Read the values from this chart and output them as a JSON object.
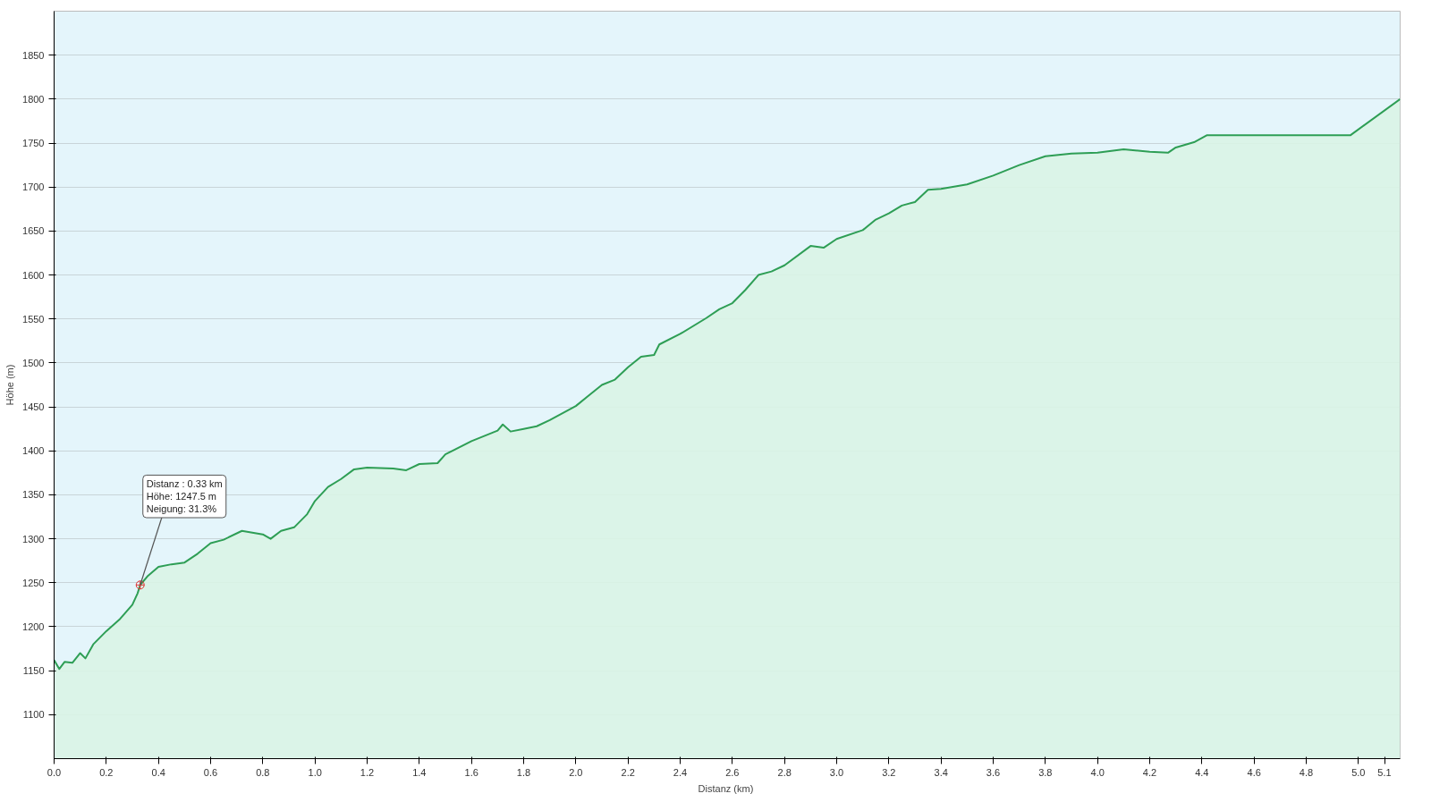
{
  "chart_data": {
    "type": "area",
    "xlabel": "Distanz  (km)",
    "ylabel": "Höhe (m)",
    "x": [
      0.0,
      0.02,
      0.04,
      0.07,
      0.1,
      0.12,
      0.15,
      0.2,
      0.25,
      0.3,
      0.32,
      0.33,
      0.36,
      0.4,
      0.45,
      0.5,
      0.55,
      0.6,
      0.65,
      0.72,
      0.8,
      0.83,
      0.87,
      0.92,
      0.97,
      1.0,
      1.05,
      1.1,
      1.15,
      1.2,
      1.3,
      1.35,
      1.4,
      1.47,
      1.5,
      1.6,
      1.7,
      1.72,
      1.75,
      1.8,
      1.85,
      1.9,
      2.0,
      2.05,
      2.1,
      2.15,
      2.2,
      2.25,
      2.3,
      2.32,
      2.4,
      2.5,
      2.55,
      2.6,
      2.65,
      2.7,
      2.75,
      2.8,
      2.9,
      2.95,
      3.0,
      3.1,
      3.15,
      3.2,
      3.25,
      3.3,
      3.35,
      3.4,
      3.5,
      3.6,
      3.7,
      3.8,
      3.9,
      4.0,
      4.1,
      4.2,
      4.27,
      4.3,
      4.37,
      4.42,
      4.6,
      4.97,
      5.16
    ],
    "series": [
      {
        "color": "#2e9e55",
        "values": [
          1162,
          1152,
          1160,
          1159,
          1170,
          1164,
          1180,
          1195,
          1208,
          1225,
          1238,
          1247.5,
          1258,
          1268,
          1271,
          1273,
          1283,
          1295,
          1299,
          1309,
          1305,
          1300,
          1309,
          1313,
          1328,
          1343,
          1359,
          1368,
          1379,
          1381,
          1380,
          1378,
          1385,
          1386,
          1396,
          1411,
          1423,
          1430,
          1422,
          1425,
          1428,
          1435,
          1451,
          1463,
          1475,
          1481,
          1495,
          1507,
          1509,
          1521,
          1533,
          1551,
          1561,
          1568,
          1583,
          1600,
          1604,
          1611,
          1633,
          1631,
          1641,
          1651,
          1663,
          1670,
          1679,
          1683,
          1697,
          1698,
          1703,
          1713,
          1725,
          1735,
          1738,
          1739,
          1743,
          1740,
          1739,
          1745,
          1751,
          1759,
          1759,
          1759,
          1800
        ]
      }
    ],
    "xlim": [
      0,
      5.16
    ],
    "ylim": [
      1050,
      1900
    ],
    "xticks": [
      {
        "value": 0,
        "label": "0.0"
      },
      {
        "value": 0.2,
        "label": "0.2"
      },
      {
        "value": 0.4,
        "label": "0.4"
      },
      {
        "value": 0.6,
        "label": "0.6"
      },
      {
        "value": 0.8,
        "label": "0.8"
      },
      {
        "value": 1,
        "label": "1.0"
      },
      {
        "value": 1.2,
        "label": "1.2"
      },
      {
        "value": 1.4,
        "label": "1.4"
      },
      {
        "value": 1.6,
        "label": "1.6"
      },
      {
        "value": 1.8,
        "label": "1.8"
      },
      {
        "value": 2,
        "label": "2.0"
      },
      {
        "value": 2.2,
        "label": "2.2"
      },
      {
        "value": 2.4,
        "label": "2.4"
      },
      {
        "value": 2.6,
        "label": "2.6"
      },
      {
        "value": 2.8,
        "label": "2.8"
      },
      {
        "value": 3,
        "label": "3.0"
      },
      {
        "value": 3.2,
        "label": "3.2"
      },
      {
        "value": 3.4,
        "label": "3.4"
      },
      {
        "value": 3.6,
        "label": "3.6"
      },
      {
        "value": 3.8,
        "label": "3.8"
      },
      {
        "value": 4,
        "label": "4.0"
      },
      {
        "value": 4.2,
        "label": "4.2"
      },
      {
        "value": 4.4,
        "label": "4.4"
      },
      {
        "value": 4.6,
        "label": "4.6"
      },
      {
        "value": 4.8,
        "label": "4.8"
      },
      {
        "value": 5,
        "label": "5.0"
      },
      {
        "value": 5.1,
        "label": "5.1"
      }
    ],
    "yticks": [
      1100,
      1150,
      1200,
      1250,
      1300,
      1350,
      1400,
      1450,
      1500,
      1550,
      1600,
      1650,
      1700,
      1750,
      1800,
      1850
    ],
    "grid": "y",
    "annotations": [
      {
        "text": "Distanz : 0.33 km\nHöhe: 1247.5 m\nNeigung: 31.3%",
        "x": 0.33,
        "y": 1247.5
      }
    ]
  }
}
